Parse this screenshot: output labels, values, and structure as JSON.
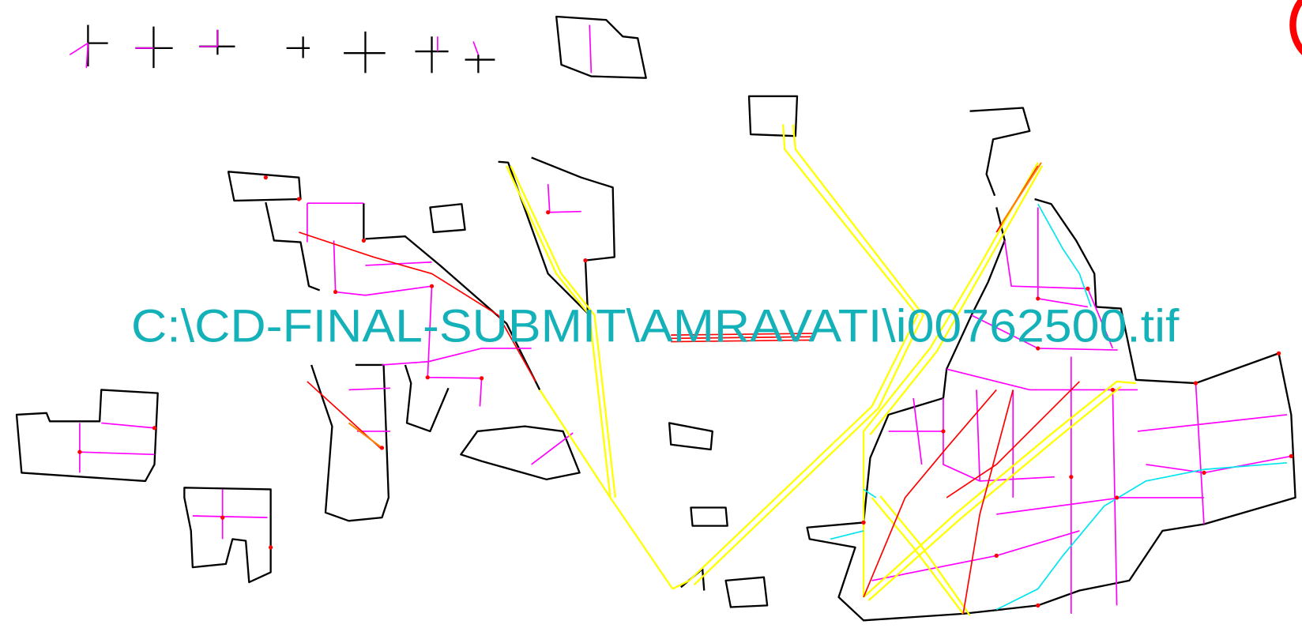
{
  "map": {
    "file_label": "C:\\CD-FINAL-SUBMIT\\AMRAVATI\\i00762500.tif"
  }
}
